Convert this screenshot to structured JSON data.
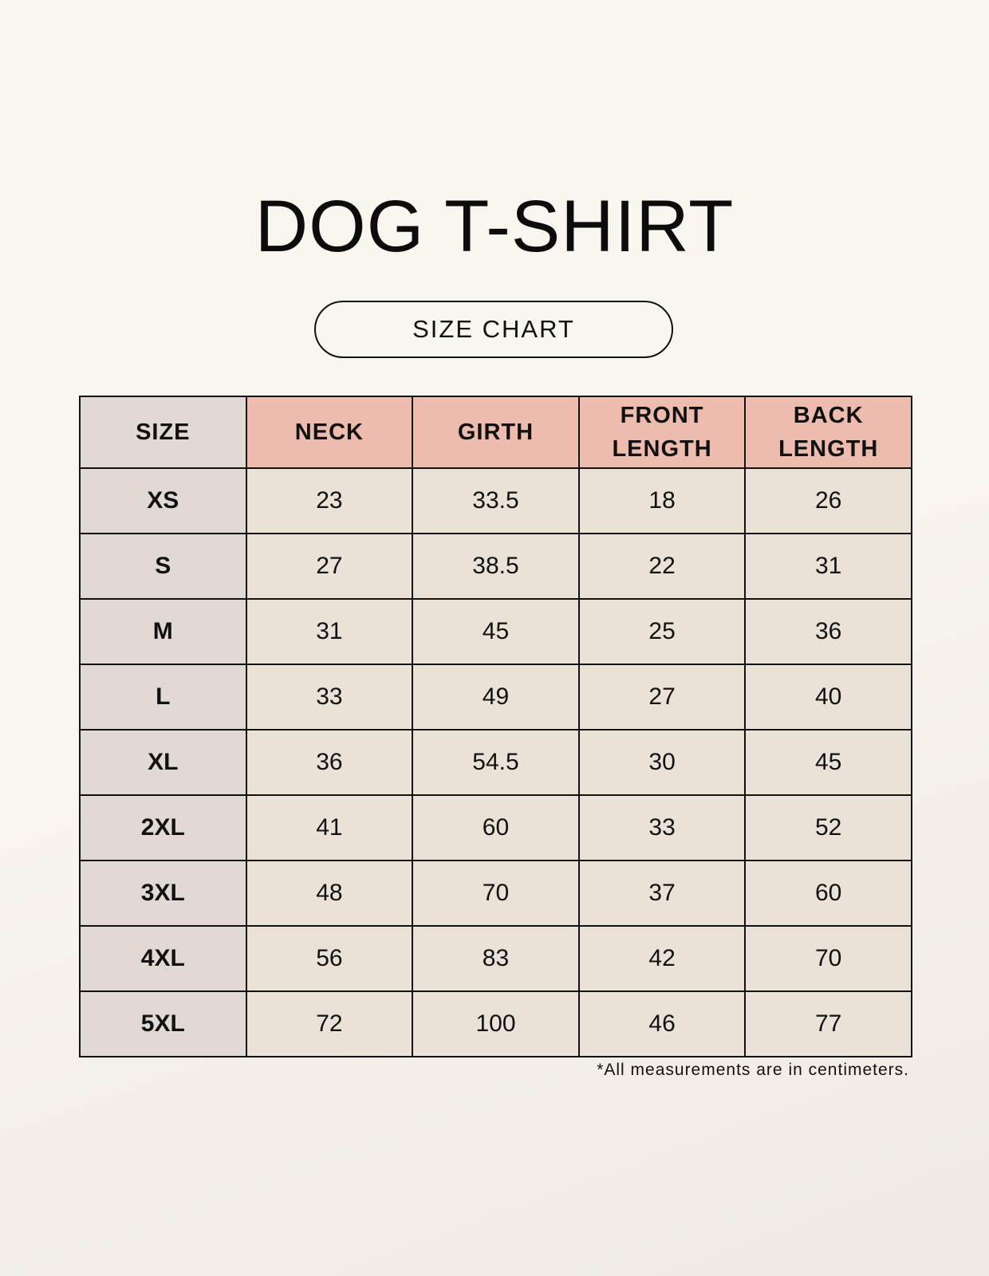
{
  "title": "DOG T-SHIRT",
  "subtitle": "SIZE CHART",
  "colors": {
    "header_accent": "#eebcae",
    "size_column": "#e1dad4",
    "cell": "#ebe2d7"
  },
  "table": {
    "headers": [
      "SIZE",
      "NECK",
      "GIRTH",
      "FRONT LENGTH",
      "BACK LENGTH"
    ],
    "rows": [
      [
        "XS",
        "23",
        "33.5",
        "18",
        "26"
      ],
      [
        "S",
        "27",
        "38.5",
        "22",
        "31"
      ],
      [
        "M",
        "31",
        "45",
        "25",
        "36"
      ],
      [
        "L",
        "33",
        "49",
        "27",
        "40"
      ],
      [
        "XL",
        "36",
        "54.5",
        "30",
        "45"
      ],
      [
        "2XL",
        "41",
        "60",
        "33",
        "52"
      ],
      [
        "3XL",
        "48",
        "70",
        "37",
        "60"
      ],
      [
        "4XL",
        "56",
        "83",
        "42",
        "70"
      ],
      [
        "5XL",
        "72",
        "100",
        "46",
        "77"
      ]
    ]
  },
  "footnote": "*All measurements are in centimeters."
}
